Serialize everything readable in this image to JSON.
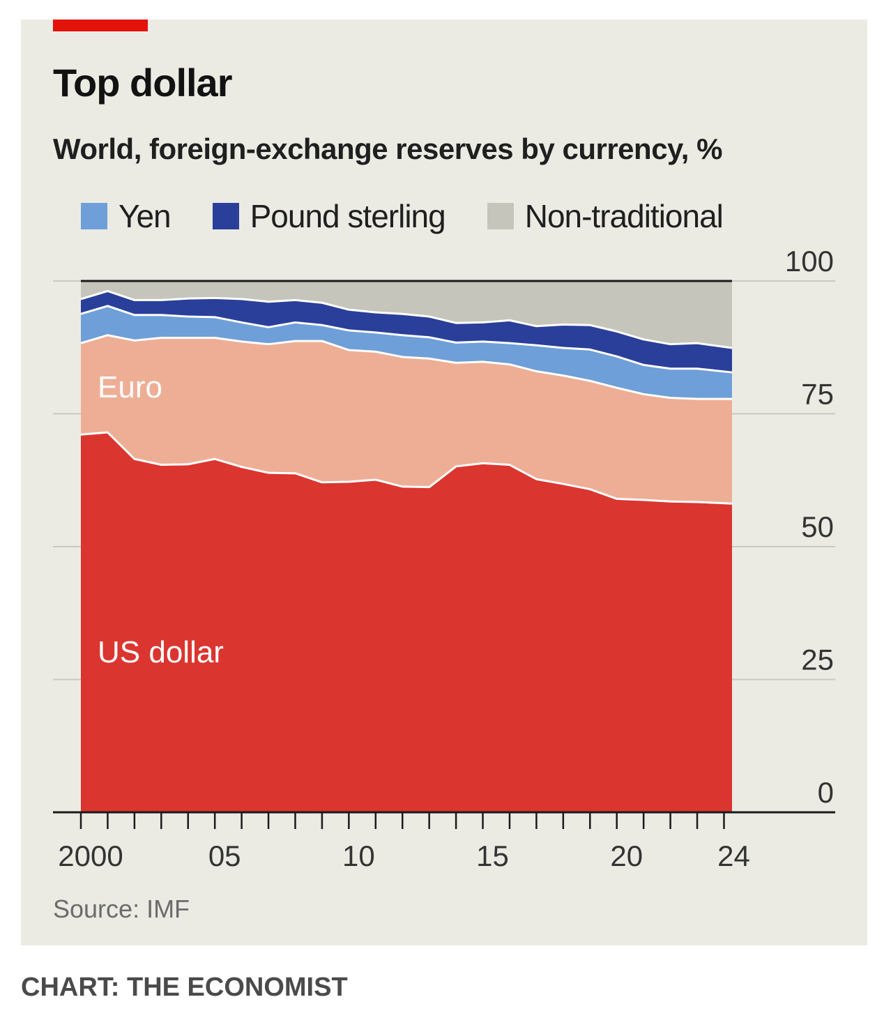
{
  "header": {
    "title": "Top dollar",
    "subtitle": "World, foreign-exchange reserves by currency, %"
  },
  "legend": [
    {
      "label": "Yen",
      "color": "#6e9fd8"
    },
    {
      "label": "Pound sterling",
      "color": "#2a3f9a"
    },
    {
      "label": "Non-traditional",
      "color": "#c5c5bc"
    }
  ],
  "source": "Source: IMF",
  "credit": "CHART: THE ECONOMIST",
  "colors": {
    "accent": "#e3120b",
    "us_dollar": "#db3530",
    "euro": "#eeae95",
    "yen": "#6e9fd8",
    "pound_sterling": "#2a3f9a",
    "non_traditional": "#c5c5bc",
    "panel_background": "#ebebe4"
  },
  "chart_data": {
    "type": "area",
    "stacked": true,
    "title": "Top dollar",
    "subtitle": "World, foreign-exchange reserves by currency, %",
    "x": [
      2000,
      2001,
      2002,
      2003,
      2004,
      2005,
      2006,
      2007,
      2008,
      2009,
      2010,
      2011,
      2012,
      2013,
      2014,
      2015,
      2016,
      2017,
      2018,
      2019,
      2020,
      2021,
      2022,
      2023,
      2024.3
    ],
    "x_tick_labels": [
      {
        "x": 2000,
        "label": "2000"
      },
      {
        "x": 2005,
        "label": "05"
      },
      {
        "x": 2010,
        "label": "10"
      },
      {
        "x": 2015,
        "label": "15"
      },
      {
        "x": 2020,
        "label": "20"
      },
      {
        "x": 2024,
        "label": "24"
      }
    ],
    "y_ticks": [
      0,
      25,
      50,
      75,
      100
    ],
    "ylim": [
      0,
      100
    ],
    "xlim": [
      2000,
      2024.3
    ],
    "y_axis_side": "right",
    "grid": true,
    "legend_position": "top",
    "series": [
      {
        "name": "US dollar",
        "color": "#db3530",
        "values": [
          71.1,
          71.5,
          66.5,
          65.4,
          65.5,
          66.5,
          65.0,
          63.9,
          63.8,
          62.1,
          62.2,
          62.6,
          61.3,
          61.2,
          65.1,
          65.7,
          65.4,
          62.7,
          61.8,
          60.8,
          59.0,
          58.8,
          58.5,
          58.4,
          58.1
        ]
      },
      {
        "name": "Euro",
        "color": "#eeae95",
        "values": [
          17.2,
          18.3,
          22.3,
          23.9,
          23.8,
          22.8,
          23.6,
          24.2,
          24.9,
          26.6,
          24.8,
          24.1,
          24.4,
          24.2,
          19.5,
          19.1,
          18.9,
          20.3,
          20.4,
          20.4,
          20.9,
          19.9,
          19.5,
          19.4,
          19.7
        ]
      },
      {
        "name": "Yen",
        "color": "#6e9fd8",
        "values": [
          5.5,
          5.5,
          4.8,
          4.3,
          4.0,
          3.9,
          3.6,
          3.2,
          3.5,
          3.0,
          3.7,
          3.6,
          4.1,
          4.0,
          3.8,
          3.8,
          4.0,
          4.9,
          5.2,
          5.9,
          5.9,
          5.5,
          5.5,
          5.7,
          5.0
        ]
      },
      {
        "name": "Pound sterling",
        "color": "#2a3f9a",
        "values": [
          2.8,
          2.8,
          2.8,
          2.8,
          3.4,
          3.6,
          4.4,
          4.8,
          4.2,
          4.2,
          3.9,
          3.8,
          4.0,
          3.9,
          3.7,
          3.6,
          4.3,
          3.6,
          4.4,
          4.6,
          4.7,
          4.8,
          4.6,
          4.8,
          4.6
        ]
      },
      {
        "name": "Non-traditional",
        "color": "#c5c5bc",
        "values": [
          3.4,
          1.9,
          3.6,
          3.6,
          3.3,
          3.2,
          3.4,
          3.9,
          3.6,
          4.1,
          5.4,
          5.9,
          6.2,
          6.7,
          7.9,
          7.8,
          7.4,
          8.5,
          8.2,
          8.3,
          9.5,
          11.0,
          11.9,
          11.7,
          12.6
        ]
      }
    ],
    "annotations": [
      {
        "text": "Euro",
        "series": "Euro"
      },
      {
        "text": "US dollar",
        "series": "US dollar"
      }
    ]
  }
}
